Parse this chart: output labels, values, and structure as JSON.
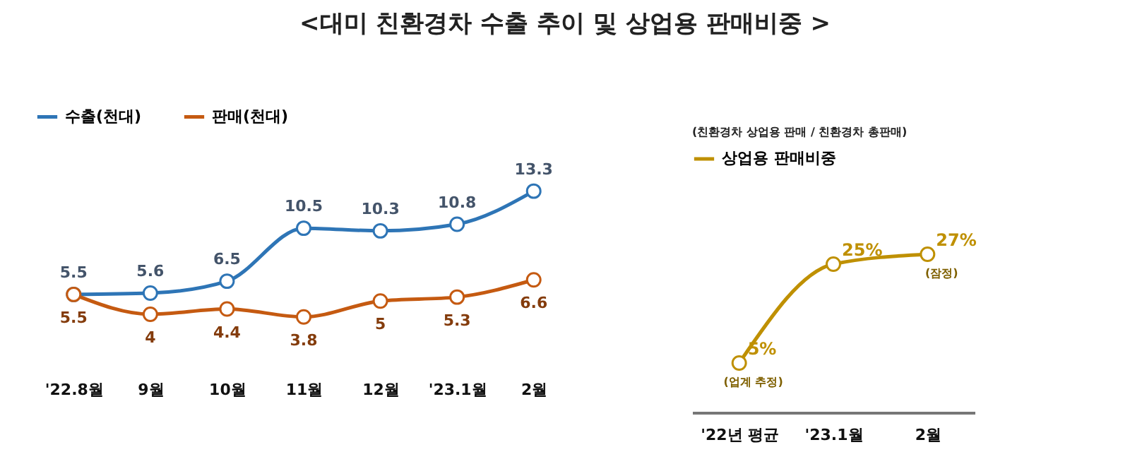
{
  "chart_data": [
    {
      "type": "line",
      "title": "<대미 친환경차 수출 추이 및 상업용 판매비중 >",
      "categories": [
        "'22.8월",
        "9월",
        "10월",
        "11월",
        "12월",
        "'23.1월",
        "2월"
      ],
      "series": [
        {
          "name": "수출(천대)",
          "color": "#2e75b6",
          "values": [
            5.5,
            5.6,
            6.5,
            10.5,
            10.3,
            10.8,
            13.3
          ]
        },
        {
          "name": "판매(천대)",
          "color": "#c55a11",
          "values": [
            5.5,
            4.0,
            4.4,
            3.8,
            5.0,
            5.3,
            6.6
          ]
        }
      ],
      "data_labels": true,
      "legend": "top left",
      "marker": "circle",
      "line_style": "solid",
      "grid": false
    },
    {
      "type": "line",
      "subtitle": "(친환경차 상업용 판매 / 친환경차 총판매)",
      "categories": [
        "'22년 평균",
        "'23.1월",
        "2월"
      ],
      "series": [
        {
          "name": "상업용 판매비중",
          "color": "#bf9000",
          "values": [
            5,
            25,
            27
          ],
          "value_labels": [
            "5%",
            "25%",
            "27%"
          ]
        }
      ],
      "annotations": [
        {
          "text": "(업계 추정)",
          "x": "'22년 평균",
          "y": 5
        },
        {
          "text": "(잠정)",
          "x": "2월",
          "y": 27
        }
      ],
      "legend": "top left",
      "marker": "circle",
      "line_style": "solid",
      "grid": false
    }
  ]
}
